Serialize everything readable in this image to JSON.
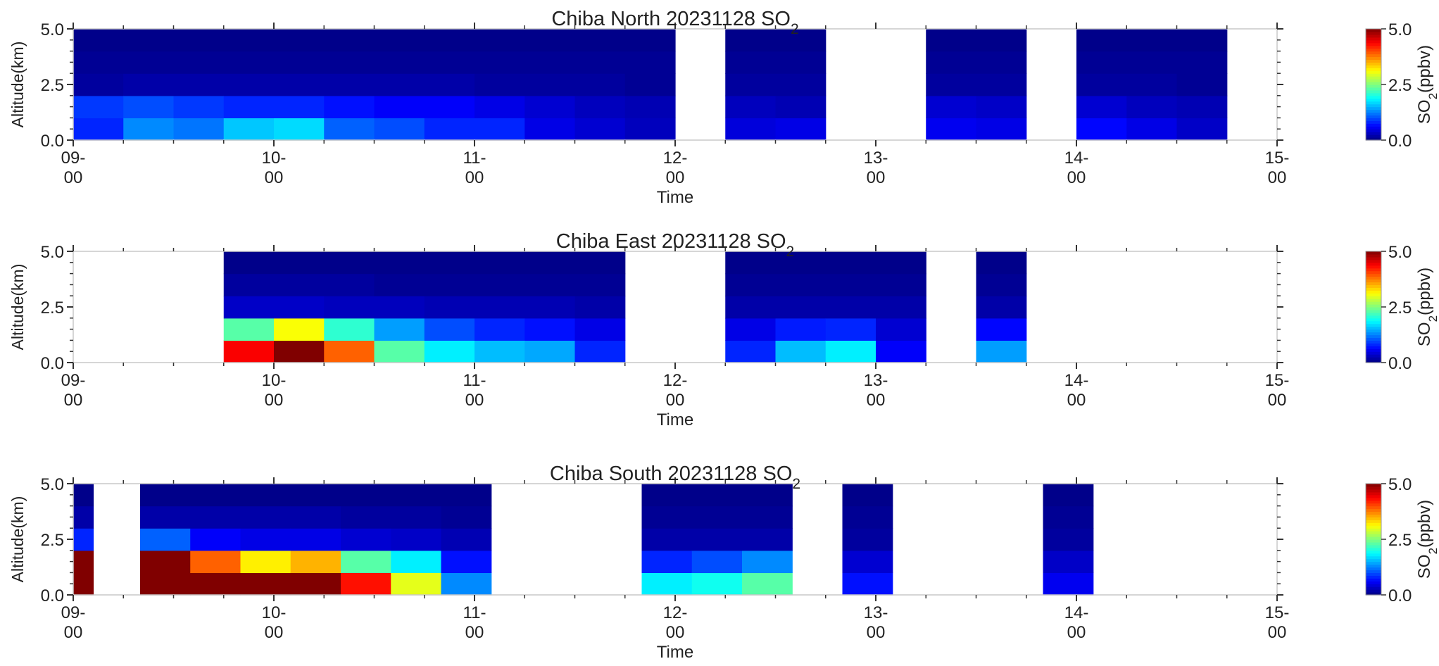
{
  "chart_data": [
    {
      "type": "heatmap",
      "title_main": "Chiba North 20231128 SO",
      "title_sub": "2",
      "xlabel": "Time",
      "ylabel": "Altitude(km)",
      "xlim": [
        "09:00",
        "15:00"
      ],
      "ylim": [
        0.0,
        5.0
      ],
      "ytick_labels": [
        "0.0",
        "2.5",
        "5.0"
      ],
      "xtick_labels": [
        [
          "09-",
          "00"
        ],
        [
          "10-",
          "00"
        ],
        [
          "11-",
          "00"
        ],
        [
          "12-",
          "00"
        ],
        [
          "13-",
          "00"
        ],
        [
          "14-",
          "00"
        ],
        [
          "15-",
          "00"
        ]
      ],
      "colorbar": {
        "label_main": "SO",
        "label_sub": "2",
        "label_unit": "(ppbv)",
        "range": [
          0.0,
          5.0
        ],
        "tick_labels": [
          "0.0",
          "2.5",
          "5.0"
        ],
        "colormap": "jet"
      },
      "bin_width_hours": 0.25,
      "altitude_bins_km": [
        [
          0,
          1
        ],
        [
          1,
          2
        ],
        [
          2,
          3
        ],
        [
          3,
          4
        ],
        [
          4,
          5
        ]
      ],
      "columns": [
        {
          "start": "09:00",
          "values": [
            0.8,
            0.9,
            0.15,
            0.1,
            0.05
          ]
        },
        {
          "start": "09:15",
          "values": [
            1.3,
            1.0,
            0.2,
            0.1,
            0.05
          ]
        },
        {
          "start": "09:30",
          "values": [
            1.2,
            0.9,
            0.2,
            0.1,
            0.05
          ]
        },
        {
          "start": "09:45",
          "values": [
            1.6,
            0.8,
            0.2,
            0.1,
            0.05
          ]
        },
        {
          "start": "10:00",
          "values": [
            1.7,
            0.8,
            0.2,
            0.1,
            0.05
          ]
        },
        {
          "start": "10:15",
          "values": [
            1.1,
            0.7,
            0.2,
            0.1,
            0.05
          ]
        },
        {
          "start": "10:30",
          "values": [
            1.0,
            0.6,
            0.2,
            0.1,
            0.05
          ]
        },
        {
          "start": "10:45",
          "values": [
            0.8,
            0.6,
            0.2,
            0.1,
            0.05
          ]
        },
        {
          "start": "11:00",
          "values": [
            0.8,
            0.5,
            0.15,
            0.1,
            0.05
          ]
        },
        {
          "start": "11:15",
          "values": [
            0.5,
            0.4,
            0.15,
            0.1,
            0.05
          ]
        },
        {
          "start": "11:30",
          "values": [
            0.4,
            0.3,
            0.15,
            0.1,
            0.05
          ]
        },
        {
          "start": "11:45",
          "values": [
            0.3,
            0.25,
            0.1,
            0.1,
            0.05
          ]
        },
        {
          "start": "12:15",
          "values": [
            0.45,
            0.3,
            0.15,
            0.1,
            0.05
          ]
        },
        {
          "start": "12:30",
          "values": [
            0.5,
            0.25,
            0.15,
            0.1,
            0.05
          ]
        },
        {
          "start": "13:15",
          "values": [
            0.55,
            0.4,
            0.15,
            0.1,
            0.05
          ]
        },
        {
          "start": "13:30",
          "values": [
            0.5,
            0.35,
            0.15,
            0.1,
            0.05
          ]
        },
        {
          "start": "14:00",
          "values": [
            0.65,
            0.4,
            0.15,
            0.1,
            0.05
          ]
        },
        {
          "start": "14:15",
          "values": [
            0.5,
            0.3,
            0.15,
            0.1,
            0.05
          ]
        },
        {
          "start": "14:30",
          "values": [
            0.35,
            0.25,
            0.1,
            0.1,
            0.05
          ]
        }
      ]
    },
    {
      "type": "heatmap",
      "title_main": "Chiba East 20231128 SO",
      "title_sub": "2",
      "xlabel": "Time",
      "ylabel": "Altitude(km)",
      "xlim": [
        "09:00",
        "15:00"
      ],
      "ylim": [
        0.0,
        5.0
      ],
      "ytick_labels": [
        "0.0",
        "2.5",
        "5.0"
      ],
      "xtick_labels": [
        [
          "09-",
          "00"
        ],
        [
          "10-",
          "00"
        ],
        [
          "11-",
          "00"
        ],
        [
          "12-",
          "00"
        ],
        [
          "13-",
          "00"
        ],
        [
          "14-",
          "00"
        ],
        [
          "15-",
          "00"
        ]
      ],
      "colorbar": {
        "label_main": "SO",
        "label_sub": "2",
        "label_unit": "(ppbv)",
        "range": [
          0.0,
          5.0
        ],
        "tick_labels": [
          "0.0",
          "2.5",
          "5.0"
        ],
        "colormap": "jet"
      },
      "bin_width_hours": 0.25,
      "altitude_bins_km": [
        [
          0,
          1
        ],
        [
          1,
          2
        ],
        [
          2,
          3
        ],
        [
          3,
          4
        ],
        [
          4,
          5
        ]
      ],
      "columns": [
        {
          "start": "09:45",
          "values": [
            4.4,
            2.3,
            0.35,
            0.15,
            0.05
          ]
        },
        {
          "start": "10:00",
          "values": [
            5.0,
            3.1,
            0.35,
            0.15,
            0.05
          ]
        },
        {
          "start": "10:15",
          "values": [
            3.9,
            2.1,
            0.3,
            0.15,
            0.05
          ]
        },
        {
          "start": "10:30",
          "values": [
            2.3,
            1.4,
            0.3,
            0.1,
            0.05
          ]
        },
        {
          "start": "10:45",
          "values": [
            1.8,
            1.0,
            0.25,
            0.1,
            0.05
          ]
        },
        {
          "start": "11:00",
          "values": [
            1.55,
            0.8,
            0.25,
            0.1,
            0.05
          ]
        },
        {
          "start": "11:15",
          "values": [
            1.45,
            0.7,
            0.25,
            0.1,
            0.05
          ]
        },
        {
          "start": "11:30",
          "values": [
            0.8,
            0.5,
            0.2,
            0.1,
            0.05
          ]
        },
        {
          "start": "12:15",
          "values": [
            0.8,
            0.5,
            0.2,
            0.1,
            0.05
          ]
        },
        {
          "start": "12:30",
          "values": [
            1.55,
            0.75,
            0.2,
            0.1,
            0.05
          ]
        },
        {
          "start": "12:45",
          "values": [
            1.8,
            0.8,
            0.2,
            0.1,
            0.05
          ]
        },
        {
          "start": "13:00",
          "values": [
            0.6,
            0.4,
            0.2,
            0.1,
            0.05
          ]
        },
        {
          "start": "13:30",
          "values": [
            1.4,
            0.65,
            0.2,
            0.1,
            0.05
          ]
        }
      ]
    },
    {
      "type": "heatmap",
      "title_main": "Chiba South 20231128 SO",
      "title_sub": "2",
      "xlabel": "Time",
      "ylabel": "Altitude(km)",
      "xlim": [
        "09:00",
        "15:00"
      ],
      "ylim": [
        0.0,
        5.0
      ],
      "ytick_labels": [
        "0.0",
        "2.5",
        "5.0"
      ],
      "xtick_labels": [
        [
          "09-",
          "00"
        ],
        [
          "10-",
          "00"
        ],
        [
          "11-",
          "00"
        ],
        [
          "12-",
          "00"
        ],
        [
          "13-",
          "00"
        ],
        [
          "14-",
          "00"
        ],
        [
          "15-",
          "00"
        ]
      ],
      "colorbar": {
        "label_main": "SO",
        "label_sub": "2",
        "label_unit": "(ppbv)",
        "range": [
          0.0,
          5.0
        ],
        "tick_labels": [
          "0.0",
          "2.5",
          "5.0"
        ],
        "colormap": "jet"
      },
      "bin_width_hours": 0.25,
      "altitude_bins_km": [
        [
          0,
          1
        ],
        [
          1,
          2
        ],
        [
          2,
          3
        ],
        [
          3,
          4
        ],
        [
          4,
          5
        ]
      ],
      "columns": [
        {
          "start": "09:00",
          "values": [
            5.0,
            5.0,
            0.8,
            0.2,
            0.05
          ],
          "width_hours": 0.1
        },
        {
          "start": "09:20",
          "values": [
            5.0,
            5.0,
            1.1,
            0.2,
            0.05
          ]
        },
        {
          "start": "09:35",
          "values": [
            5.0,
            3.9,
            0.6,
            0.2,
            0.05
          ]
        },
        {
          "start": "09:50",
          "values": [
            5.0,
            3.2,
            0.5,
            0.2,
            0.05
          ]
        },
        {
          "start": "10:05",
          "values": [
            5.0,
            3.5,
            0.5,
            0.2,
            0.05
          ]
        },
        {
          "start": "10:20",
          "values": [
            4.3,
            2.3,
            0.4,
            0.15,
            0.05
          ]
        },
        {
          "start": "10:35",
          "values": [
            3.0,
            1.8,
            0.35,
            0.15,
            0.05
          ]
        },
        {
          "start": "10:50",
          "values": [
            1.3,
            0.7,
            0.25,
            0.1,
            0.05
          ]
        },
        {
          "start": "11:50",
          "values": [
            1.8,
            0.8,
            0.2,
            0.1,
            0.05
          ]
        },
        {
          "start": "12:05",
          "values": [
            1.95,
            1.0,
            0.2,
            0.1,
            0.05
          ]
        },
        {
          "start": "12:20",
          "values": [
            2.3,
            1.3,
            0.2,
            0.1,
            0.05
          ]
        },
        {
          "start": "12:50",
          "values": [
            0.7,
            0.4,
            0.15,
            0.1,
            0.05
          ]
        },
        {
          "start": "13:50",
          "values": [
            0.55,
            0.35,
            0.15,
            0.1,
            0.05
          ]
        }
      ]
    }
  ]
}
